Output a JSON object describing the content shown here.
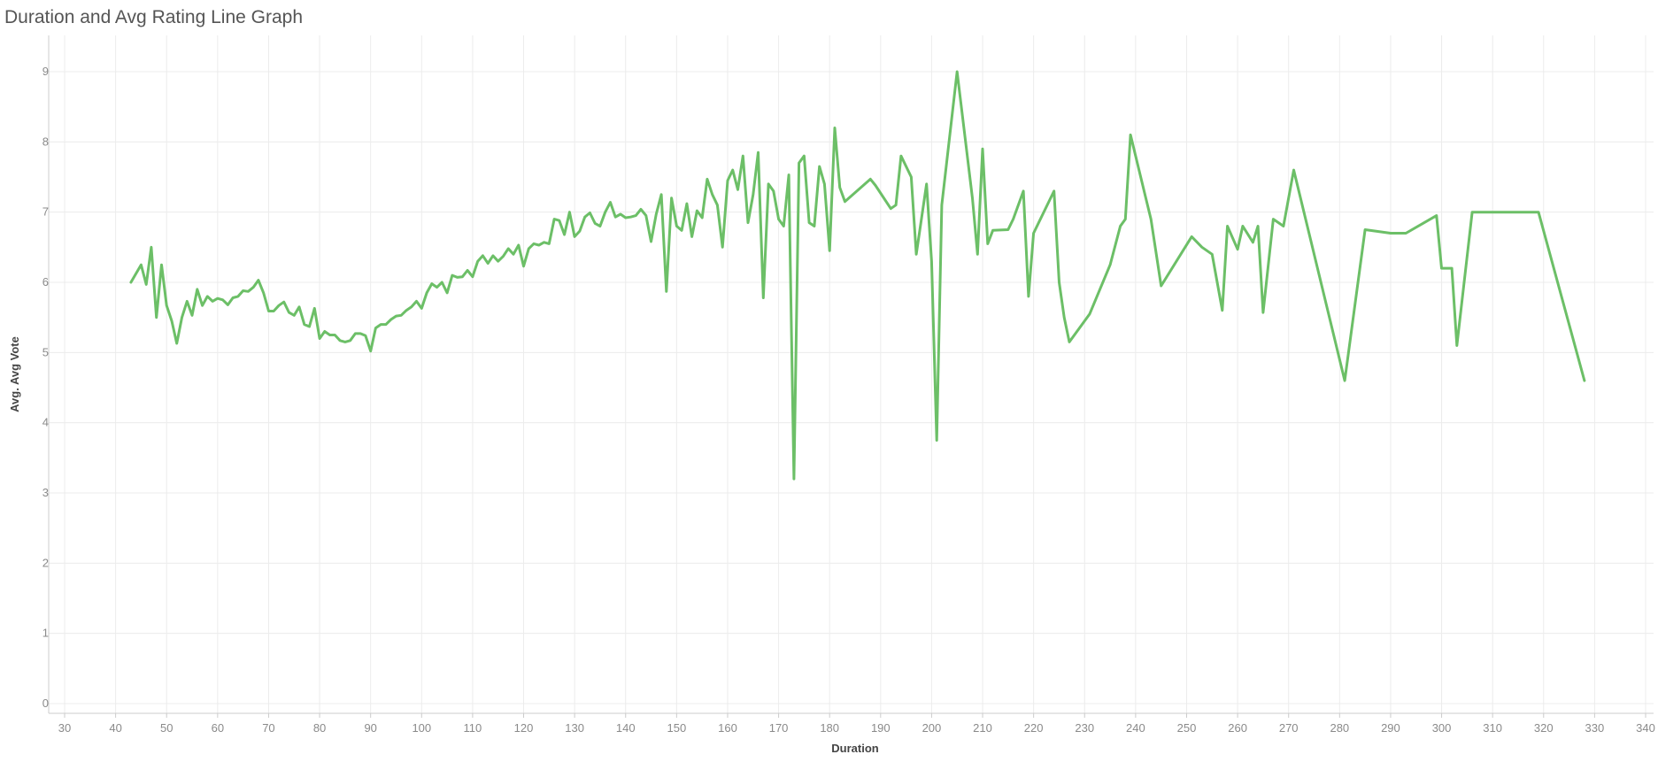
{
  "page": {
    "title": "Duration and Avg Rating Line Graph"
  },
  "chart_data": {
    "type": "line",
    "title": "Duration and Avg Rating Line Graph",
    "xlabel": "Duration",
    "ylabel": "Avg. Avg Vote",
    "xlim": [
      30,
      340
    ],
    "ylim": [
      0,
      9
    ],
    "x_ticks": [
      30,
      40,
      50,
      60,
      70,
      80,
      90,
      100,
      110,
      120,
      130,
      140,
      150,
      160,
      170,
      180,
      190,
      200,
      210,
      220,
      230,
      240,
      250,
      260,
      270,
      280,
      290,
      300,
      310,
      320,
      330,
      340
    ],
    "y_ticks": [
      0,
      1,
      2,
      3,
      4,
      5,
      6,
      7,
      8,
      9
    ],
    "grid": true,
    "legend": "none",
    "colors": {
      "line": "#6cbf67",
      "grid": "#ececec",
      "axis": "#cccccc"
    },
    "series": [
      {
        "x": [
          43,
          45,
          46,
          47,
          48,
          49,
          50,
          51,
          52,
          53,
          54,
          55,
          56,
          57,
          58,
          59,
          60,
          61,
          62,
          63,
          64,
          65,
          66,
          67,
          68,
          69,
          70,
          71,
          72,
          73,
          74,
          75,
          76,
          77,
          78,
          79,
          80,
          81,
          82,
          83,
          84,
          85,
          86,
          87,
          88,
          89,
          90,
          91,
          92,
          93,
          94,
          95,
          96,
          97,
          98,
          99,
          100,
          101,
          102,
          103,
          104,
          105,
          106,
          107,
          108,
          109,
          110,
          111,
          112,
          113,
          114,
          115,
          116,
          117,
          118,
          119,
          120,
          121,
          122,
          123,
          124,
          125,
          126,
          127,
          128,
          129,
          130,
          131,
          132,
          133,
          134,
          135,
          136,
          137,
          138,
          139,
          140,
          141,
          142,
          143,
          144,
          145,
          146,
          147,
          148,
          149,
          150,
          151,
          152,
          153,
          154,
          155,
          156,
          157,
          158,
          159,
          160,
          161,
          162,
          163,
          164,
          165,
          166,
          167,
          168,
          169,
          170,
          171,
          172,
          173,
          174,
          175,
          176,
          177,
          178,
          179,
          180,
          181,
          182,
          183,
          188,
          189,
          192,
          193,
          194,
          196,
          197,
          199,
          200,
          201,
          202,
          205,
          208,
          209,
          210,
          211,
          212,
          215,
          216,
          218,
          219,
          220,
          224,
          225,
          226,
          227,
          231,
          235,
          237,
          238,
          239,
          242,
          243,
          245,
          251,
          253,
          255,
          257,
          258,
          260,
          261,
          263,
          264,
          265,
          267,
          269,
          271,
          281,
          285,
          290,
          293,
          299,
          300,
          302,
          303,
          306,
          312,
          319,
          328
        ],
        "y": [
          6.0,
          6.25,
          5.97,
          6.5,
          5.5,
          6.25,
          5.67,
          5.45,
          5.13,
          5.5,
          5.73,
          5.53,
          5.9,
          5.67,
          5.8,
          5.73,
          5.77,
          5.75,
          5.68,
          5.78,
          5.8,
          5.88,
          5.87,
          5.93,
          6.03,
          5.85,
          5.59,
          5.59,
          5.67,
          5.72,
          5.57,
          5.53,
          5.65,
          5.4,
          5.37,
          5.63,
          5.2,
          5.3,
          5.25,
          5.25,
          5.17,
          5.15,
          5.17,
          5.27,
          5.27,
          5.24,
          5.02,
          5.35,
          5.4,
          5.4,
          5.47,
          5.52,
          5.53,
          5.6,
          5.65,
          5.73,
          5.63,
          5.85,
          5.98,
          5.93,
          6.0,
          5.85,
          6.1,
          6.07,
          6.08,
          6.17,
          6.08,
          6.3,
          6.38,
          6.27,
          6.38,
          6.3,
          6.37,
          6.48,
          6.4,
          6.53,
          6.23,
          6.48,
          6.55,
          6.53,
          6.57,
          6.55,
          6.9,
          6.88,
          6.68,
          7.0,
          6.65,
          6.73,
          6.93,
          6.99,
          6.84,
          6.8,
          7.0,
          7.14,
          6.93,
          6.97,
          6.92,
          6.93,
          6.95,
          7.04,
          6.95,
          6.58,
          6.97,
          7.25,
          5.87,
          7.2,
          6.8,
          6.74,
          7.12,
          6.65,
          7.02,
          6.92,
          7.47,
          7.25,
          7.1,
          6.5,
          7.45,
          7.6,
          7.32,
          7.8,
          6.85,
          7.25,
          7.85,
          5.78,
          7.4,
          7.3,
          6.9,
          6.8,
          7.53,
          3.2,
          7.7,
          7.8,
          6.85,
          6.8,
          7.65,
          7.4,
          6.45,
          8.2,
          7.35,
          7.15,
          7.47,
          7.38,
          7.05,
          7.1,
          7.8,
          7.5,
          6.4,
          7.4,
          6.3,
          3.75,
          7.1,
          9.0,
          7.2,
          6.4,
          7.9,
          6.55,
          6.74,
          6.75,
          6.9,
          7.3,
          5.8,
          6.7,
          7.3,
          6.0,
          5.5,
          5.15,
          5.55,
          6.25,
          6.8,
          6.9,
          8.1,
          7.2,
          6.9,
          5.95,
          6.65,
          6.5,
          6.4,
          5.6,
          6.8,
          6.47,
          6.8,
          6.57,
          6.8,
          5.57,
          6.9,
          6.8,
          7.6,
          4.6,
          6.75,
          6.7,
          6.7,
          6.95,
          6.2,
          6.2,
          5.1,
          7.0,
          7.0,
          7.0,
          4.6
        ]
      }
    ]
  }
}
